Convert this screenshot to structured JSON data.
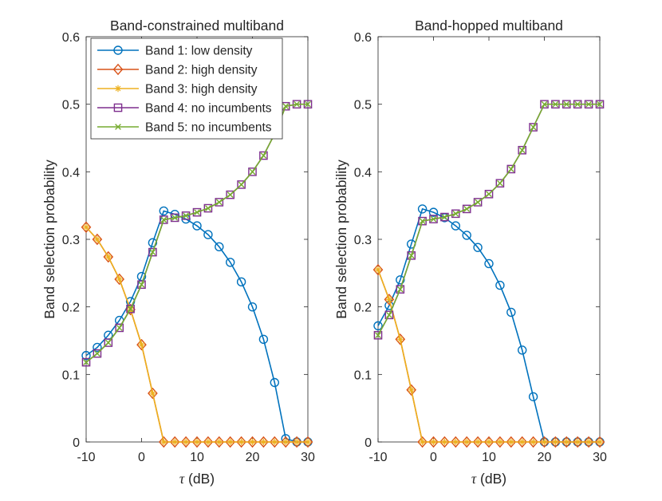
{
  "chart_data": [
    {
      "type": "line",
      "title": "Band-constrained multiband",
      "xlabel_symbol": "τ",
      "xlabel_unit": " (dB)",
      "ylabel": "Band selection probability",
      "xlim": [
        -10,
        30
      ],
      "ylim": [
        0,
        0.6
      ],
      "xticks": [
        -10,
        0,
        10,
        20,
        30
      ],
      "yticks": [
        0,
        0.1,
        0.2,
        0.3,
        0.4,
        0.5,
        0.6
      ],
      "ytick_labels": [
        "0",
        "0.1",
        "0.2",
        "0.3",
        "0.4",
        "0.5",
        "0.6"
      ],
      "grid": false,
      "legend_position": "top-left",
      "x": [
        -10,
        -8,
        -6,
        -4,
        -2,
        0,
        2,
        4,
        6,
        8,
        10,
        12,
        14,
        16,
        18,
        20,
        22,
        24,
        26,
        28,
        30
      ],
      "series": [
        {
          "name": "Band 1: low density",
          "color": "#0072BD",
          "marker": "circle",
          "values": [
            0.128,
            0.14,
            0.158,
            0.18,
            0.208,
            0.245,
            0.295,
            0.342,
            0.337,
            0.33,
            0.32,
            0.307,
            0.289,
            0.266,
            0.237,
            0.2,
            0.152,
            0.088,
            0.005,
            0,
            0
          ]
        },
        {
          "name": "Band 2: high density",
          "color": "#D95319",
          "marker": "diamond",
          "values": [
            0.318,
            0.3,
            0.274,
            0.241,
            0.196,
            0.144,
            0.072,
            0,
            0,
            0,
            0,
            0,
            0,
            0,
            0,
            0,
            0,
            0,
            0,
            0,
            0
          ]
        },
        {
          "name": "Band 3: high density",
          "color": "#EDB120",
          "marker": "asterisk",
          "values": [
            0.318,
            0.3,
            0.274,
            0.241,
            0.196,
            0.144,
            0.072,
            0,
            0,
            0,
            0,
            0,
            0,
            0,
            0,
            0,
            0,
            0,
            0,
            0,
            0
          ]
        },
        {
          "name": "Band 4: no incumbents",
          "color": "#7E2F8E",
          "marker": "square",
          "values": [
            0.118,
            0.131,
            0.147,
            0.169,
            0.197,
            0.233,
            0.281,
            0.329,
            0.332,
            0.335,
            0.34,
            0.346,
            0.355,
            0.366,
            0.381,
            0.4,
            0.424,
            0.456,
            0.497,
            0.5,
            0.5
          ]
        },
        {
          "name": "Band 5: no incumbents",
          "color": "#77AC30",
          "marker": "x",
          "values": [
            0.118,
            0.131,
            0.147,
            0.169,
            0.197,
            0.233,
            0.281,
            0.329,
            0.332,
            0.335,
            0.34,
            0.346,
            0.355,
            0.366,
            0.381,
            0.4,
            0.424,
            0.456,
            0.497,
            0.5,
            0.5
          ]
        }
      ]
    },
    {
      "type": "line",
      "title": "Band-hopped multiband",
      "xlabel_symbol": "τ",
      "xlabel_unit": " (dB)",
      "ylabel": "Band selection probability",
      "xlim": [
        -10,
        30
      ],
      "ylim": [
        0,
        0.6
      ],
      "xticks": [
        -10,
        0,
        10,
        20,
        30
      ],
      "yticks": [
        0,
        0.1,
        0.2,
        0.3,
        0.4,
        0.5,
        0.6
      ],
      "ytick_labels": [
        "0",
        "0.1",
        "0.2",
        "0.3",
        "0.4",
        "0.5",
        "0.6"
      ],
      "grid": false,
      "x": [
        -10,
        -8,
        -6,
        -4,
        -2,
        0,
        2,
        4,
        6,
        8,
        10,
        12,
        14,
        16,
        18,
        20,
        22,
        24,
        26,
        28,
        30
      ],
      "series": [
        {
          "name": "Band 1: low density",
          "color": "#0072BD",
          "marker": "circle",
          "values": [
            0.172,
            0.202,
            0.24,
            0.293,
            0.345,
            0.34,
            0.332,
            0.32,
            0.306,
            0.288,
            0.264,
            0.232,
            0.192,
            0.136,
            0.067,
            0,
            0,
            0,
            0,
            0,
            0
          ]
        },
        {
          "name": "Band 2: high density",
          "color": "#D95319",
          "marker": "diamond",
          "values": [
            0.255,
            0.211,
            0.152,
            0.077,
            0,
            0,
            0,
            0,
            0,
            0,
            0,
            0,
            0,
            0,
            0,
            0,
            0,
            0,
            0,
            0,
            0
          ]
        },
        {
          "name": "Band 3: high density",
          "color": "#EDB120",
          "marker": "asterisk",
          "values": [
            0.255,
            0.211,
            0.152,
            0.077,
            0,
            0,
            0,
            0,
            0,
            0,
            0,
            0,
            0,
            0,
            0,
            0,
            0,
            0,
            0,
            0,
            0
          ]
        },
        {
          "name": "Band 4: no incumbents",
          "color": "#7E2F8E",
          "marker": "square",
          "values": [
            0.158,
            0.188,
            0.226,
            0.276,
            0.327,
            0.33,
            0.333,
            0.338,
            0.345,
            0.355,
            0.367,
            0.383,
            0.404,
            0.432,
            0.466,
            0.5,
            0.5,
            0.5,
            0.5,
            0.5,
            0.5
          ]
        },
        {
          "name": "Band 5: no incumbents",
          "color": "#77AC30",
          "marker": "x",
          "values": [
            0.158,
            0.188,
            0.226,
            0.276,
            0.327,
            0.33,
            0.333,
            0.338,
            0.345,
            0.355,
            0.367,
            0.383,
            0.404,
            0.432,
            0.466,
            0.5,
            0.5,
            0.5,
            0.5,
            0.5,
            0.5
          ]
        }
      ]
    }
  ]
}
